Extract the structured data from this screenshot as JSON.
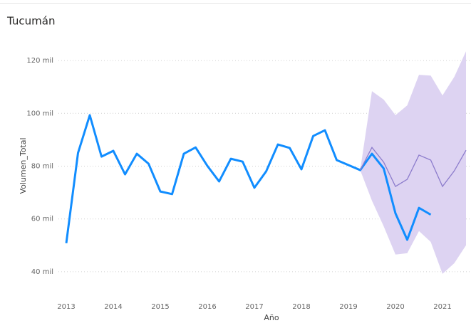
{
  "chart_data": {
    "type": "line",
    "title": "Tucumán",
    "x_label": "Año",
    "y_label": "Volumen_Total",
    "x": [
      2013,
      2013.25,
      2013.5,
      2013.75,
      2014,
      2014.25,
      2014.5,
      2014.75,
      2015,
      2015.25,
      2015.5,
      2015.75,
      2016,
      2016.25,
      2016.5,
      2016.75,
      2017,
      2017.25,
      2017.5,
      2017.75,
      2018,
      2018.25,
      2018.5,
      2018.75,
      2019,
      2019.25,
      2019.5,
      2019.75,
      2020,
      2020.25,
      2020.5,
      2020.75
    ],
    "series": [
      {
        "color": "#118dff",
        "values": [
          50800,
          85000,
          99300,
          83600,
          85800,
          76900,
          84700,
          80900,
          70400,
          69400,
          84700,
          87100,
          80100,
          74200,
          82800,
          81700,
          71800,
          78000,
          88200,
          86900,
          78800,
          91400,
          93600,
          82300,
          80400,
          78500,
          84700,
          79100,
          62100,
          52100,
          64200,
          61600
        ]
      }
    ],
    "forecast": {
      "color": "#8c7ccc",
      "band_color": "#ddd3f2",
      "x": [
        2019.25,
        2019.5,
        2019.75,
        2020,
        2020.25,
        2020.5,
        2020.75,
        2021,
        2021.25,
        2021.5
      ],
      "values": [
        78500,
        87100,
        81500,
        72300,
        75000,
        84200,
        82300,
        72300,
        78200,
        86000
      ],
      "upper": [
        78500,
        108400,
        105200,
        99300,
        103000,
        114600,
        114300,
        106800,
        113800,
        123500
      ],
      "lower": [
        78500,
        66900,
        57200,
        46500,
        47000,
        55400,
        51300,
        39200,
        43200,
        50000
      ]
    },
    "xlim": [
      2012.5,
      2021.6
    ],
    "xticks": [
      2013,
      2014,
      2015,
      2016,
      2017,
      2018,
      2019,
      2020,
      2021
    ],
    "ylim": [
      30000,
      130000
    ],
    "yticks": [
      {
        "value": 40000,
        "label": "40 mil"
      },
      {
        "value": 60000,
        "label": "60 mil"
      },
      {
        "value": 80000,
        "label": "80 mil"
      },
      {
        "value": 100000,
        "label": "100 mil"
      },
      {
        "value": 120000,
        "label": "120 mil"
      }
    ],
    "grid": true
  }
}
